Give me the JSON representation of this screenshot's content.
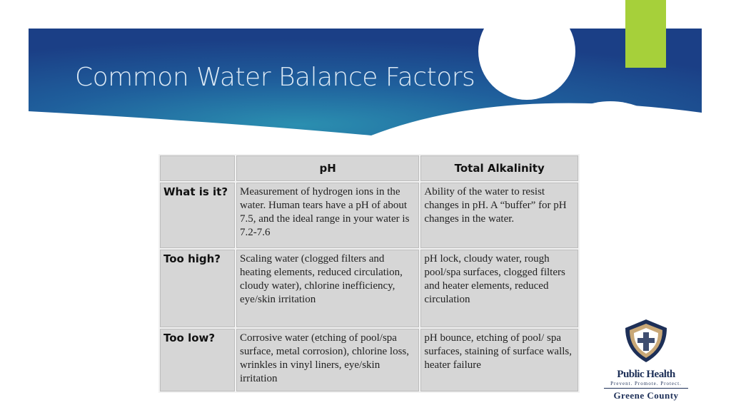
{
  "header": {
    "title": "Common Water Balance Factors"
  },
  "table": {
    "columns": [
      "pH",
      "Total Alkalinity"
    ],
    "rows": [
      [
        "What is it?",
        "Measurement of hydrogen ions in the water.  Human tears have a pH of about 7.5, and the ideal range in your water is 7.2-7.6",
        "Ability of the water to resist changes in pH.  A “buffer” for pH changes in the water."
      ],
      [
        "Too high?",
        "Scaling water (clogged filters and heating elements, reduced circulation, cloudy water), chlorine inefficiency, eye/skin irritation",
        "pH lock, cloudy water, rough pool/spa surfaces, clogged filters and heater elements, reduced circulation"
      ],
      [
        "Too low?",
        "Corrosive water (etching of pool/spa surface, metal corrosion), chlorine loss, wrinkles in vinyl liners, eye/skin irritation",
        "pH bounce, etching of pool/ spa surfaces, staining of surface walls, heater failure"
      ]
    ]
  },
  "logo": {
    "name": "Public Health",
    "tagline": "Prevent. Promote. Protect.",
    "county": "Greene County"
  }
}
